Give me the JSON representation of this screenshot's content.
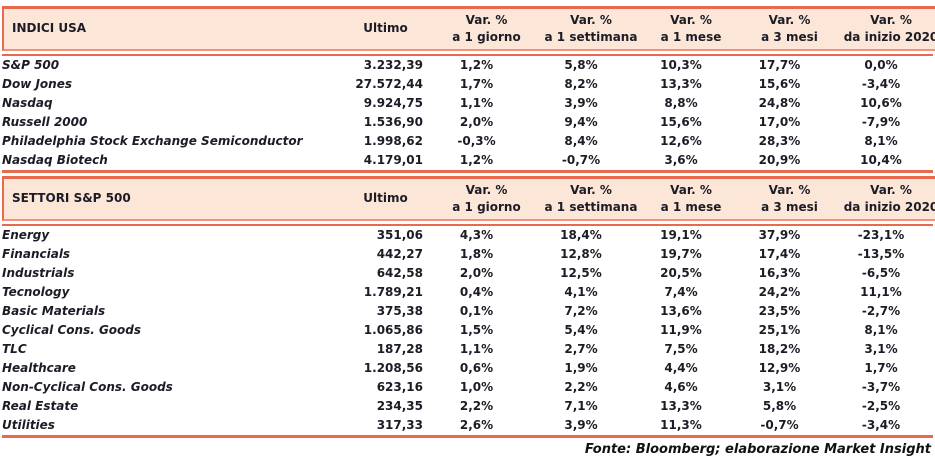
{
  "colors": {
    "band_background": "#fbe6d8",
    "border_strong": "#e8694e",
    "border_light": "#f0937d",
    "text": "#1c1c26"
  },
  "table": {
    "columns": [
      {
        "line1": "",
        "line2": ""
      },
      {
        "line1": "Ultimo",
        "line2": ""
      },
      {
        "line1": "Var. %",
        "line2": "a 1 giorno"
      },
      {
        "line1": "Var. %",
        "line2": "a 1 settimana"
      },
      {
        "line1": "Var. %",
        "line2": "a 1 mese"
      },
      {
        "line1": "Var. %",
        "line2": "a 3 mesi"
      },
      {
        "line1": "Var. %",
        "line2": "da inizio 2020"
      }
    ],
    "sections": [
      {
        "title": "INDICI USA",
        "rows": [
          [
            "S&P 500",
            "3.232,39",
            "1,2%",
            "5,8%",
            "10,3%",
            "17,7%",
            "0,0%"
          ],
          [
            "Dow Jones",
            "27.572,44",
            "1,7%",
            "8,2%",
            "13,3%",
            "15,6%",
            "-3,4%"
          ],
          [
            "Nasdaq",
            "9.924,75",
            "1,1%",
            "3,9%",
            "8,8%",
            "24,8%",
            "10,6%"
          ],
          [
            "Russell 2000",
            "1.536,90",
            "2,0%",
            "9,4%",
            "15,6%",
            "17,0%",
            "-7,9%"
          ],
          [
            "Philadelphia Stock Exchange Semiconductor",
            "1.998,62",
            "-0,3%",
            "8,4%",
            "12,6%",
            "28,3%",
            "8,1%"
          ],
          [
            "Nasdaq Biotech",
            "4.179,01",
            "1,2%",
            "-0,7%",
            "3,6%",
            "20,9%",
            "10,4%"
          ]
        ]
      },
      {
        "title": "SETTORI S&P 500",
        "rows": [
          [
            "Energy",
            "351,06",
            "4,3%",
            "18,4%",
            "19,1%",
            "37,9%",
            "-23,1%"
          ],
          [
            "Financials",
            "442,27",
            "1,8%",
            "12,8%",
            "19,7%",
            "17,4%",
            "-13,5%"
          ],
          [
            "Industrials",
            "642,58",
            "2,0%",
            "12,5%",
            "20,5%",
            "16,3%",
            "-6,5%"
          ],
          [
            "Tecnology",
            "1.789,21",
            "0,4%",
            "4,1%",
            "7,4%",
            "24,2%",
            "11,1%"
          ],
          [
            "Basic Materials",
            "375,38",
            "0,1%",
            "7,2%",
            "13,6%",
            "23,5%",
            "-2,7%"
          ],
          [
            "Cyclical Cons. Goods",
            "1.065,86",
            "1,5%",
            "5,4%",
            "11,9%",
            "25,1%",
            "8,1%"
          ],
          [
            "TLC",
            "187,28",
            "1,1%",
            "2,7%",
            "7,5%",
            "18,2%",
            "3,1%"
          ],
          [
            "Healthcare",
            "1.208,56",
            "0,6%",
            "1,9%",
            "4,4%",
            "12,9%",
            "1,7%"
          ],
          [
            "Non-Cyclical Cons. Goods",
            "623,16",
            "1,0%",
            "2,2%",
            "4,6%",
            "3,1%",
            "-3,7%"
          ],
          [
            "Real Estate",
            "234,35",
            "2,2%",
            "7,1%",
            "13,3%",
            "5,8%",
            "-2,5%"
          ],
          [
            "Utilities",
            "317,33",
            "2,6%",
            "3,9%",
            "11,3%",
            "-0,7%",
            "-3,4%"
          ]
        ]
      }
    ]
  },
  "footer": {
    "source_text": "Fonte: Bloomberg; elaborazione Market Insight"
  }
}
